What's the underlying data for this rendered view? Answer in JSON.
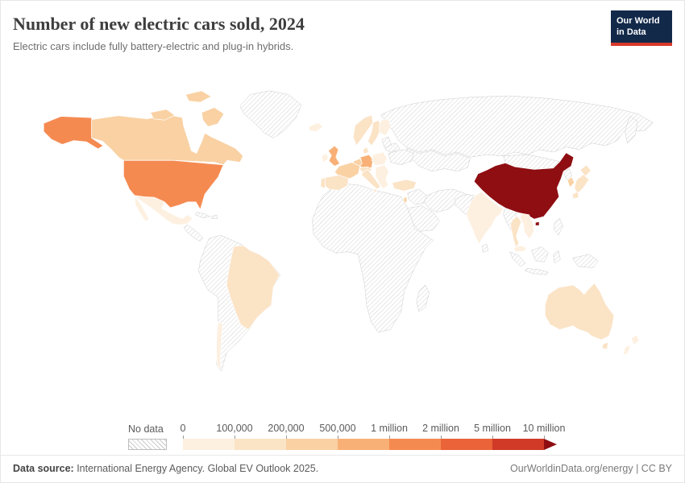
{
  "header": {
    "title": "Number of new electric cars sold, 2024",
    "subtitle": "Electric cars include fully battery-electric and plug-in hybrids.",
    "logo": {
      "line1": "Our World",
      "line2": "in Data",
      "bg_color": "#12294a",
      "accent_color": "#d7382a"
    }
  },
  "legend": {
    "no_data_label": "No data",
    "ticks": [
      "0",
      "100,000",
      "200,000",
      "500,000",
      "1 million",
      "2 million",
      "5 million",
      "10 million"
    ],
    "segment_colors": [
      "#fdf0e0",
      "#fbe3c6",
      "#f9d1a3",
      "#f8b077",
      "#f58a51",
      "#ea6339",
      "#d03a27"
    ],
    "arrow_color": "#8e0e12"
  },
  "footer": {
    "source_label": "Data source:",
    "source_text": " International Energy Agency. Global EV Outlook 2025.",
    "rights": "OurWorldinData.org/energy | CC BY"
  },
  "chart_data": {
    "type": "choropleth_map",
    "title": "Number of new electric cars sold, 2024",
    "unit": "new electric cars sold (battery-electric and plug-in hybrid)",
    "legend_buckets": [
      {
        "range": "0 – 100,000",
        "color": "#fdf0e0"
      },
      {
        "range": "100,000 – 200,000",
        "color": "#fbe3c6"
      },
      {
        "range": "200,000 – 500,000",
        "color": "#f9d1a3"
      },
      {
        "range": "500,000 – 1 million",
        "color": "#f8b077"
      },
      {
        "range": "1 – 2 million",
        "color": "#f58a51"
      },
      {
        "range": "2 – 5 million",
        "color": "#ea6339"
      },
      {
        "range": "5 – 10 million",
        "color": "#d03a27"
      },
      {
        "range": "more than 10 million",
        "color": "#8e0e12"
      }
    ],
    "countries": [
      {
        "id": "china",
        "name": "China",
        "bucket": "more than 10 million",
        "color": "#8e0e12"
      },
      {
        "id": "usa",
        "name": "United States",
        "bucket": "1 – 2 million",
        "color": "#f58a51"
      },
      {
        "id": "canada",
        "name": "Canada",
        "bucket": "200,000 – 500,000",
        "color": "#f9d1a3"
      },
      {
        "id": "mexico",
        "name": "Mexico",
        "bucket": "0 – 100,000",
        "color": "#fdf0e0"
      },
      {
        "id": "brazil",
        "name": "Brazil",
        "bucket": "100,000 – 200,000",
        "color": "#fbe3c6"
      },
      {
        "id": "chile",
        "name": "Chile",
        "bucket": "0 – 100,000",
        "color": "#fdf0e0"
      },
      {
        "id": "uk",
        "name": "United Kingdom",
        "bucket": "500,000 – 1 million",
        "color": "#f8b077"
      },
      {
        "id": "ireland",
        "name": "Ireland",
        "bucket": "0 – 100,000",
        "color": "#fdf0e0"
      },
      {
        "id": "germany",
        "name": "Germany",
        "bucket": "500,000 – 1 million",
        "color": "#f8b077"
      },
      {
        "id": "france",
        "name": "France",
        "bucket": "200,000 – 500,000",
        "color": "#f9d1a3"
      },
      {
        "id": "netherlands",
        "name": "Netherlands / Belgium",
        "bucket": "200,000 – 500,000",
        "color": "#f9d1a3"
      },
      {
        "id": "spain",
        "name": "Spain",
        "bucket": "100,000 – 200,000",
        "color": "#fbe3c6"
      },
      {
        "id": "portugal",
        "name": "Portugal",
        "bucket": "100,000 – 200,000",
        "color": "#fbe3c6"
      },
      {
        "id": "italy",
        "name": "Italy",
        "bucket": "100,000 – 200,000",
        "color": "#fbe3c6"
      },
      {
        "id": "norway",
        "name": "Norway",
        "bucket": "100,000 – 200,000",
        "color": "#fbe3c6"
      },
      {
        "id": "sweden",
        "name": "Sweden",
        "bucket": "100,000 – 200,000",
        "color": "#fbe3c6"
      },
      {
        "id": "finland",
        "name": "Finland",
        "bucket": "0 – 100,000",
        "color": "#fdf0e0"
      },
      {
        "id": "denmark",
        "name": "Denmark",
        "bucket": "100,000 – 200,000",
        "color": "#fbe3c6"
      },
      {
        "id": "poland",
        "name": "Poland",
        "bucket": "0 – 100,000",
        "color": "#fdf0e0"
      },
      {
        "id": "austria-switzerland",
        "name": "Austria / Switzerland",
        "bucket": "100,000 – 200,000",
        "color": "#fbe3c6"
      },
      {
        "id": "balkans",
        "name": "Southeastern Europe",
        "bucket": "0 – 100,000",
        "color": "#fdf0e0"
      },
      {
        "id": "iceland",
        "name": "Iceland",
        "bucket": "0 – 100,000",
        "color": "#fdf0e0"
      },
      {
        "id": "turkey",
        "name": "Turkey",
        "bucket": "100,000 – 200,000",
        "color": "#fbe3c6"
      },
      {
        "id": "israel",
        "name": "Israel",
        "bucket": "200,000 – 500,000",
        "color": "#f9d1a3"
      },
      {
        "id": "india",
        "name": "India",
        "bucket": "0 – 100,000",
        "color": "#fdf0e0"
      },
      {
        "id": "japan",
        "name": "Japan",
        "bucket": "100,000 – 200,000",
        "color": "#fbe3c6"
      },
      {
        "id": "south-korea",
        "name": "South Korea",
        "bucket": "200,000 – 500,000",
        "color": "#f9d1a3"
      },
      {
        "id": "thailand",
        "name": "Thailand",
        "bucket": "100,000 – 200,000",
        "color": "#fbe3c6"
      },
      {
        "id": "vietnam",
        "name": "Vietnam",
        "bucket": "0 – 100,000",
        "color": "#fdf0e0"
      },
      {
        "id": "malaysia",
        "name": "Malaysia",
        "bucket": "0 – 100,000",
        "color": "#fdf0e0"
      },
      {
        "id": "australia",
        "name": "Australia",
        "bucket": "100,000 – 200,000",
        "color": "#fbe3c6"
      },
      {
        "id": "new-zealand",
        "name": "New Zealand",
        "bucket": "0 – 100,000",
        "color": "#fdf0e0"
      }
    ],
    "no_data_regions": [
      "Russia",
      "Central Asia",
      "Mongolia",
      "Most of Africa",
      "Middle East (most)",
      "Greenland",
      "Central America",
      "Caribbean",
      "Argentina and Andean South America",
      "Myanmar",
      "Indonesia",
      "Philippines",
      "Papua New Guinea",
      "North Korea",
      "Sri Lanka",
      "Ukraine",
      "Belarus",
      "Baltic states",
      "Madagascar"
    ]
  }
}
